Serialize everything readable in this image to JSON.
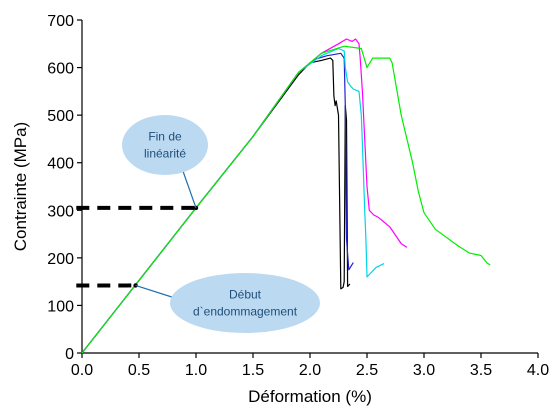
{
  "chart_data": {
    "type": "line",
    "xlabel": "Déformation (%)",
    "ylabel": "Contrainte (MPa)",
    "xlim": [
      0,
      4.0
    ],
    "ylim": [
      0,
      700
    ],
    "x_ticks": [
      "0.0",
      "0.5",
      "1.0",
      "1.5",
      "2.0",
      "2.5",
      "3.0",
      "3.5",
      "4.0"
    ],
    "y_ticks": [
      "0",
      "100",
      "200",
      "300",
      "400",
      "500",
      "600",
      "700"
    ],
    "grid": false,
    "legend": "none",
    "series": [
      {
        "color": "#000000",
        "points": [
          [
            0,
            0
          ],
          [
            1.0,
            305
          ],
          [
            1.5,
            455
          ],
          [
            1.9,
            585
          ],
          [
            2.0,
            610
          ],
          [
            2.1,
            615
          ],
          [
            2.18,
            620
          ],
          [
            2.2,
            615
          ],
          [
            2.21,
            540
          ],
          [
            2.22,
            520
          ],
          [
            2.23,
            530
          ],
          [
            2.25,
            500
          ],
          [
            2.27,
            135
          ],
          [
            2.29,
            138
          ],
          [
            2.3,
            150
          ],
          [
            2.31,
            520
          ],
          [
            2.32,
            490
          ],
          [
            2.33,
            140
          ],
          [
            2.35,
            145
          ]
        ]
      },
      {
        "color": "#2222cc",
        "points": [
          [
            0,
            0
          ],
          [
            1.0,
            305
          ],
          [
            1.5,
            455
          ],
          [
            1.9,
            590
          ],
          [
            2.05,
            618
          ],
          [
            2.15,
            625
          ],
          [
            2.22,
            628
          ],
          [
            2.27,
            630
          ],
          [
            2.3,
            620
          ],
          [
            2.31,
            520
          ],
          [
            2.32,
            240
          ],
          [
            2.34,
            175
          ],
          [
            2.38,
            190
          ]
        ]
      },
      {
        "color": "#00d4e6",
        "points": [
          [
            0,
            0
          ],
          [
            1.0,
            305
          ],
          [
            1.5,
            455
          ],
          [
            1.9,
            590
          ],
          [
            2.1,
            625
          ],
          [
            2.25,
            640
          ],
          [
            2.3,
            635
          ],
          [
            2.31,
            600
          ],
          [
            2.33,
            570
          ],
          [
            2.36,
            560
          ],
          [
            2.38,
            555
          ],
          [
            2.43,
            550
          ],
          [
            2.45,
            500
          ],
          [
            2.46,
            440
          ],
          [
            2.48,
            300
          ],
          [
            2.49,
            240
          ],
          [
            2.5,
            160
          ],
          [
            2.52,
            165
          ],
          [
            2.58,
            180
          ],
          [
            2.65,
            188
          ]
        ]
      },
      {
        "color": "#ff00ff",
        "points": [
          [
            0,
            0
          ],
          [
            1.0,
            305
          ],
          [
            1.5,
            455
          ],
          [
            1.9,
            590
          ],
          [
            2.1,
            630
          ],
          [
            2.25,
            650
          ],
          [
            2.32,
            660
          ],
          [
            2.37,
            655
          ],
          [
            2.4,
            660
          ],
          [
            2.43,
            650
          ],
          [
            2.44,
            620
          ],
          [
            2.46,
            550
          ],
          [
            2.48,
            450
          ],
          [
            2.5,
            350
          ],
          [
            2.52,
            300
          ],
          [
            2.56,
            290
          ],
          [
            2.6,
            285
          ],
          [
            2.7,
            265
          ],
          [
            2.8,
            230
          ],
          [
            2.85,
            222
          ]
        ]
      },
      {
        "color": "#00ee00",
        "points": [
          [
            0,
            0
          ],
          [
            1.0,
            305
          ],
          [
            1.5,
            455
          ],
          [
            1.9,
            590
          ],
          [
            2.1,
            630
          ],
          [
            2.3,
            645
          ],
          [
            2.45,
            640
          ],
          [
            2.5,
            600
          ],
          [
            2.55,
            620
          ],
          [
            2.7,
            620
          ],
          [
            2.72,
            610
          ],
          [
            2.8,
            500
          ],
          [
            2.9,
            400
          ],
          [
            2.95,
            340
          ],
          [
            3.0,
            295
          ],
          [
            3.1,
            260
          ],
          [
            3.3,
            225
          ],
          [
            3.4,
            210
          ],
          [
            3.5,
            205
          ],
          [
            3.55,
            190
          ],
          [
            3.58,
            185
          ]
        ]
      }
    ],
    "annotations": [
      {
        "label": "Fin de linéarité",
        "lines": [
          "Fin de",
          "linéarité"
        ],
        "point": [
          1.0,
          305
        ],
        "dashed_line_from_x": -0.05
      },
      {
        "label": "Début d`endommagement",
        "lines": [
          "Début",
          "d`endommagement"
        ],
        "point": [
          0.47,
          142
        ],
        "dashed_line_from_x": -0.05
      }
    ]
  }
}
